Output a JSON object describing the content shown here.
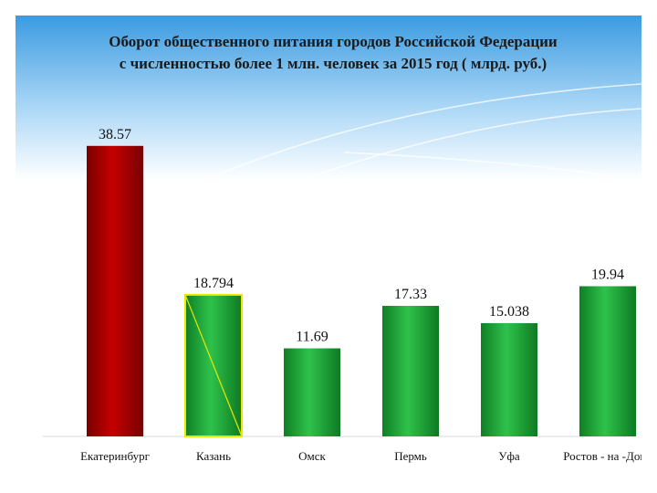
{
  "chart_data": {
    "type": "bar",
    "title_lines": [
      "Оборот общественного питания  городов Российской Федерации",
      "с численностью более 1 млн. человек за 2015 год ( млрд. руб.)"
    ],
    "categories": [
      "Екатеринбург",
      "Казань",
      "Омск",
      "Пермь",
      "Уфа",
      "Ростов - на -Дону"
    ],
    "values": [
      38.57,
      18.794,
      11.69,
      17.33,
      15.038,
      19.94
    ],
    "value_labels": [
      "38.57",
      "18.794",
      "11.69",
      "17.33",
      "15.038",
      "19.94"
    ],
    "ylim": [
      0,
      40
    ],
    "grid": false,
    "legend": "none",
    "colors": {
      "highlight": "#b00000",
      "bars": "#1ea83a",
      "selected_outline": "#e8e800",
      "header_top": "#3b9be0",
      "header_bottom": "#ffffff"
    }
  }
}
